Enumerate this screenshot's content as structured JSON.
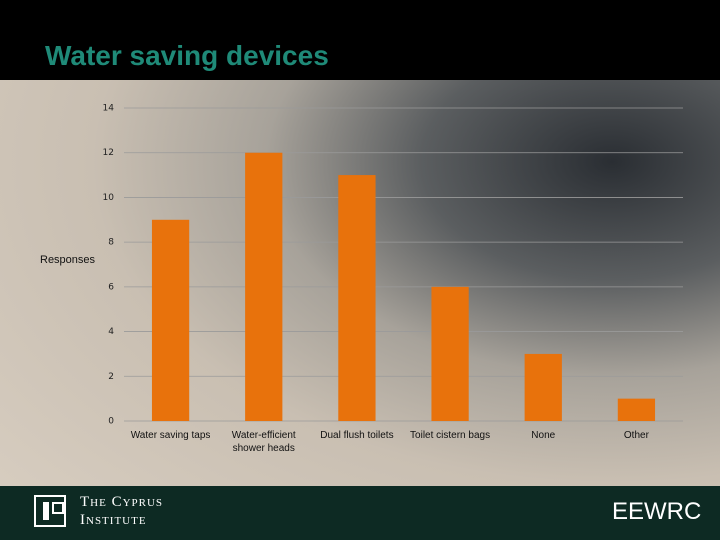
{
  "chart_data": {
    "type": "bar",
    "title": "Water saving devices",
    "y_label": "Responses",
    "categories": [
      "Water saving taps",
      "Water-efficient shower heads",
      "Dual flush toilets",
      "Toilet cistern bags",
      "None",
      "Other"
    ],
    "values": [
      9,
      12,
      11,
      6,
      3,
      1
    ],
    "color": "#e8720c",
    "ylim": [
      0,
      14
    ],
    "yticks": [
      0,
      2,
      4,
      6,
      8,
      10,
      12,
      14
    ],
    "grid": true
  },
  "footer": {
    "org_line1": "The Cyprus",
    "org_line2": "Institute",
    "unit": "EEWRC"
  }
}
